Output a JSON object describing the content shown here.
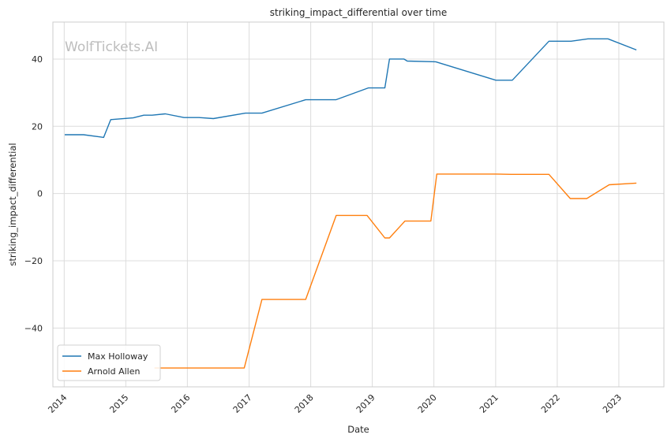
{
  "chart_data": {
    "type": "line",
    "title": "striking_impact_differential over time",
    "xlabel": "Date",
    "ylabel": "striking_impact_differential",
    "watermark": "WolfTickets.AI",
    "grid": true,
    "legend_position": "lower-left",
    "x_ticks": [
      "2014",
      "2015",
      "2016",
      "2017",
      "2018",
      "2019",
      "2020",
      "2021",
      "2022",
      "2023"
    ],
    "y_ticks": [
      -40,
      -20,
      0,
      20,
      40
    ],
    "xlim": [
      "2013-10-26",
      "2023-09-25"
    ],
    "ylim": [
      -57.5,
      51
    ],
    "series": [
      {
        "name": "Max Holloway",
        "color": "#1f77b4",
        "points": [
          [
            "2014-01-04",
            17.5
          ],
          [
            "2014-04-26",
            17.5
          ],
          [
            "2014-08-23",
            16.7
          ],
          [
            "2014-10-04",
            22.0
          ],
          [
            "2015-02-14",
            22.5
          ],
          [
            "2015-04-18",
            23.3
          ],
          [
            "2015-06-06",
            23.3
          ],
          [
            "2015-08-23",
            23.7
          ],
          [
            "2015-12-12",
            22.6
          ],
          [
            "2016-03-10",
            22.6
          ],
          [
            "2016-06-03",
            22.3
          ],
          [
            "2016-12-10",
            23.9
          ],
          [
            "2017-03-18",
            23.9
          ],
          [
            "2017-12-02",
            27.9
          ],
          [
            "2018-05-30",
            27.9
          ],
          [
            "2018-12-08",
            31.4
          ],
          [
            "2019-03-16",
            31.4
          ],
          [
            "2019-04-13",
            40.0
          ],
          [
            "2019-07-07",
            40.0
          ],
          [
            "2019-07-27",
            39.4
          ],
          [
            "2020-01-12",
            39.2
          ],
          [
            "2021-01-02",
            33.7
          ],
          [
            "2021-04-10",
            33.7
          ],
          [
            "2021-11-13",
            45.3
          ],
          [
            "2022-03-24",
            45.3
          ],
          [
            "2022-07-02",
            46.0
          ],
          [
            "2022-10-29",
            46.0
          ],
          [
            "2023-04-15",
            42.7
          ]
        ]
      },
      {
        "name": "Arnold Allen",
        "color": "#ff7f0e",
        "points": [
          [
            "2015-06-20",
            -51.9
          ],
          [
            "2016-12-03",
            -51.9
          ],
          [
            "2017-03-18",
            -31.5
          ],
          [
            "2017-12-02",
            -31.5
          ],
          [
            "2018-06-01",
            -6.5
          ],
          [
            "2018-12-01",
            -6.5
          ],
          [
            "2019-03-16",
            -13.2
          ],
          [
            "2019-04-13",
            -13.2
          ],
          [
            "2019-07-13",
            -8.2
          ],
          [
            "2019-12-14",
            -8.2
          ],
          [
            "2020-01-18",
            5.8
          ],
          [
            "2021-01-02",
            5.8
          ],
          [
            "2021-04-03",
            5.7
          ],
          [
            "2021-11-13",
            5.7
          ],
          [
            "2022-03-19",
            -1.5
          ],
          [
            "2022-06-25",
            -1.5
          ],
          [
            "2022-11-05",
            2.6
          ],
          [
            "2023-04-15",
            3.1
          ]
        ]
      }
    ]
  }
}
